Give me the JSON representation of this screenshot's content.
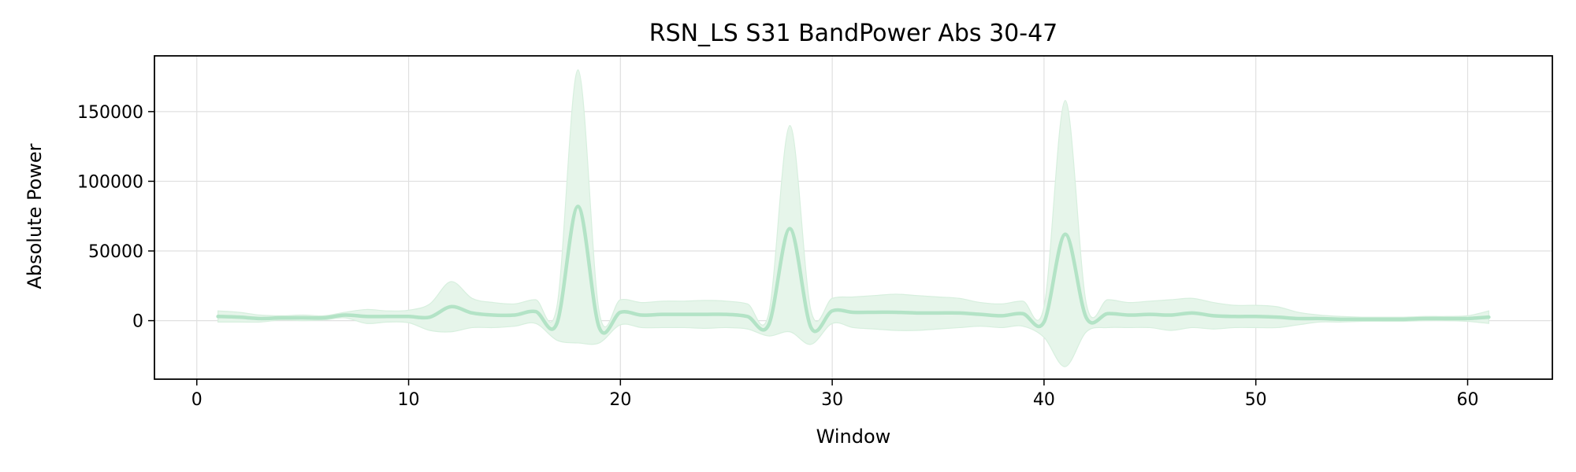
{
  "chart_data": {
    "type": "line",
    "title": "RSN_LS S31 BandPower Abs 30-47",
    "xlabel": "Window",
    "ylabel": "Absolute Power",
    "xlim": [
      -2,
      64
    ],
    "ylim": [
      -42000,
      190000
    ],
    "grid": true,
    "xticks": [
      0,
      10,
      20,
      30,
      40,
      50,
      60
    ],
    "xtick_labels": [
      "0",
      "10",
      "20",
      "30",
      "40",
      "50",
      "60"
    ],
    "yticks": [
      0,
      50000,
      100000,
      150000
    ],
    "ytick_labels": [
      "0",
      "50000",
      "100000",
      "150000"
    ],
    "colors": {
      "line": "#b3e3c6",
      "band": "#e6f5ea",
      "band_edge": "#d7efde",
      "grid": "#e0e0e0"
    },
    "series": [
      {
        "x": [
          1,
          2,
          3,
          4,
          5,
          6,
          7,
          8,
          9,
          10,
          11,
          12,
          13,
          14,
          15,
          16,
          17,
          18,
          19,
          20,
          21,
          22,
          23,
          24,
          25,
          26,
          27,
          28,
          29,
          30,
          31,
          32,
          33,
          34,
          35,
          36,
          37,
          38,
          39,
          40,
          41,
          42,
          43,
          44,
          45,
          46,
          47,
          48,
          49,
          50,
          51,
          52,
          53,
          54,
          55,
          56,
          57,
          58,
          59,
          60,
          61
        ],
        "mean": [
          3000,
          2500,
          1500,
          2000,
          2000,
          2000,
          4000,
          3000,
          3000,
          3000,
          2500,
          10000,
          5500,
          4000,
          4000,
          6500,
          -2000,
          82000,
          -5000,
          6000,
          4000,
          4500,
          4500,
          4500,
          4500,
          3000,
          -3000,
          66000,
          -5000,
          7000,
          6000,
          6000,
          6000,
          5500,
          5500,
          5500,
          4500,
          3500,
          5000,
          -1000,
          62000,
          2000,
          5000,
          4000,
          4500,
          4000,
          5500,
          3500,
          3000,
          3000,
          2500,
          1500,
          1500,
          1000,
          1000,
          1000,
          1000,
          1500,
          1500,
          1500,
          2500
        ],
        "upper": [
          7000,
          6000,
          4000,
          3500,
          4000,
          3500,
          6000,
          8000,
          7000,
          7500,
          12000,
          28000,
          16000,
          13000,
          12000,
          15000,
          10000,
          180000,
          6000,
          15000,
          13000,
          14000,
          14000,
          14500,
          14000,
          12000,
          5000,
          140000,
          7000,
          16000,
          17000,
          18000,
          19000,
          18000,
          17000,
          16000,
          13000,
          12000,
          14000,
          10000,
          158000,
          12000,
          15000,
          13000,
          14000,
          15000,
          16000,
          13000,
          11000,
          11000,
          10000,
          6000,
          4000,
          3000,
          2500,
          2500,
          2500,
          3000,
          3000,
          3500,
          7000
        ],
        "lower": [
          -1000,
          -1000,
          -1000,
          500,
          0,
          500,
          2000,
          -2000,
          -1000,
          -1500,
          -7000,
          -8000,
          -5000,
          -5000,
          -4000,
          -2000,
          -14000,
          -16000,
          -16000,
          -3000,
          -5000,
          -5000,
          -5000,
          -5500,
          -5000,
          -6000,
          -11000,
          -8000,
          -17000,
          -2000,
          -5000,
          -6000,
          -7000,
          -7000,
          -6000,
          -5000,
          -4000,
          -5000,
          -4000,
          -12000,
          -33000,
          -8000,
          -5000,
          -5000,
          -5000,
          -7000,
          -5000,
          -6000,
          -5000,
          -5000,
          -5000,
          -3000,
          -1000,
          -1000,
          -500,
          -500,
          -500,
          0,
          0,
          -500,
          -2000
        ]
      }
    ]
  }
}
